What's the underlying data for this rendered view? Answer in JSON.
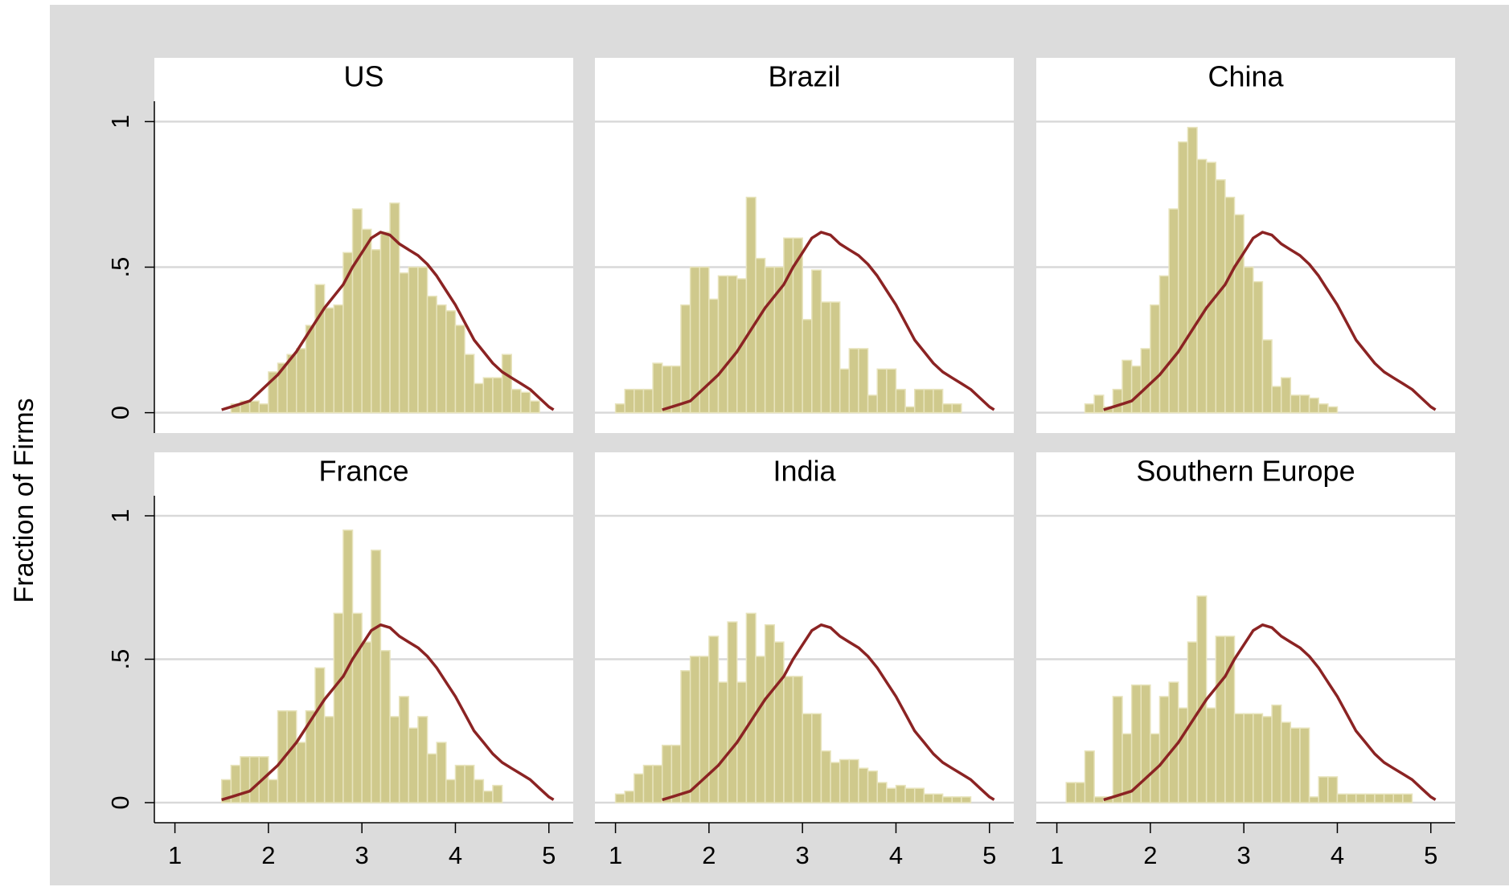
{
  "ylabel": "Fraction of Firms",
  "chart_data": [
    {
      "type": "histogram",
      "title": "US",
      "yaxis": true,
      "bins": [
        1,
        1.1,
        1.2,
        1.3,
        1.4,
        1.5,
        1.6,
        1.7,
        1.8,
        1.9,
        2,
        2.1,
        2.2,
        2.3,
        2.4,
        2.5,
        2.6,
        2.7,
        2.8,
        2.9,
        3,
        3.1,
        3.2,
        3.3,
        3.4,
        3.5,
        3.6,
        3.7,
        3.8,
        3.9,
        4,
        4.1,
        4.2,
        4.3,
        4.4,
        4.5,
        4.6,
        4.7,
        4.8,
        4.9,
        5
      ],
      "values": [
        0,
        0,
        0,
        0,
        0,
        0,
        0.03,
        0.04,
        0.04,
        0.03,
        0.14,
        0.17,
        0.2,
        0.22,
        0.3,
        0.44,
        0.36,
        0.37,
        0.55,
        0.7,
        0.63,
        0.56,
        0.62,
        0.72,
        0.48,
        0.5,
        0.5,
        0.4,
        0.37,
        0.35,
        0.3,
        0.2,
        0.1,
        0.12,
        0.12,
        0.2,
        0.08,
        0.07,
        0.04,
        0
      ],
      "color": "#cfc98c",
      "line": {
        "x": [
          1.5,
          1.6,
          1.7,
          1.8,
          1.9,
          2,
          2.1,
          2.2,
          2.3,
          2.4,
          2.5,
          2.6,
          2.7,
          2.8,
          2.9,
          3,
          3.1,
          3.2,
          3.3,
          3.4,
          3.5,
          3.6,
          3.7,
          3.8,
          3.9,
          4,
          4.1,
          4.2,
          4.3,
          4.4,
          4.5,
          4.6,
          4.7,
          4.8,
          4.9,
          5,
          5.05
        ],
        "values": [
          0.01,
          0.02,
          0.03,
          0.04,
          0.07,
          0.1,
          0.13,
          0.17,
          0.21,
          0.26,
          0.31,
          0.36,
          0.4,
          0.44,
          0.5,
          0.55,
          0.6,
          0.62,
          0.61,
          0.58,
          0.56,
          0.54,
          0.51,
          0.47,
          0.42,
          0.37,
          0.31,
          0.25,
          0.21,
          0.17,
          0.14,
          0.12,
          0.1,
          0.08,
          0.05,
          0.02,
          0.01
        ],
        "color": "#8b2323"
      },
      "xlim": [
        0.78,
        5.26
      ],
      "ylim": [
        -0.07,
        1.07
      ],
      "yticks": [
        0,
        {
          "value": 0.5,
          "label": ".5"
        },
        1
      ],
      "grid": true
    },
    {
      "type": "histogram",
      "title": "Brazil",
      "bins": [
        1,
        1.1,
        1.2,
        1.3,
        1.4,
        1.5,
        1.6,
        1.7,
        1.8,
        1.9,
        2,
        2.1,
        2.2,
        2.3,
        2.4,
        2.5,
        2.6,
        2.7,
        2.8,
        2.9,
        3,
        3.1,
        3.2,
        3.3,
        3.4,
        3.5,
        3.6,
        3.7,
        3.8,
        3.9,
        4,
        4.1,
        4.2,
        4.3,
        4.4,
        4.5,
        4.6,
        4.7,
        4.8,
        4.9,
        5
      ],
      "values": [
        0.03,
        0.08,
        0.08,
        0.08,
        0.17,
        0.16,
        0.16,
        0.37,
        0.5,
        0.5,
        0.39,
        0.47,
        0.47,
        0.46,
        0.74,
        0.53,
        0.5,
        0.5,
        0.6,
        0.6,
        0.32,
        0.49,
        0.38,
        0.38,
        0.15,
        0.22,
        0.22,
        0.06,
        0.15,
        0.15,
        0.08,
        0.02,
        0.08,
        0.08,
        0.08,
        0.03,
        0.03,
        0,
        0,
        0
      ],
      "color": "#cfc98c",
      "line": {
        "x": [
          1.5,
          1.6,
          1.7,
          1.8,
          1.9,
          2,
          2.1,
          2.2,
          2.3,
          2.4,
          2.5,
          2.6,
          2.7,
          2.8,
          2.9,
          3,
          3.1,
          3.2,
          3.3,
          3.4,
          3.5,
          3.6,
          3.7,
          3.8,
          3.9,
          4,
          4.1,
          4.2,
          4.3,
          4.4,
          4.5,
          4.6,
          4.7,
          4.8,
          4.9,
          5,
          5.05
        ],
        "values": [
          0.01,
          0.02,
          0.03,
          0.04,
          0.07,
          0.1,
          0.13,
          0.17,
          0.21,
          0.26,
          0.31,
          0.36,
          0.4,
          0.44,
          0.5,
          0.55,
          0.6,
          0.62,
          0.61,
          0.58,
          0.56,
          0.54,
          0.51,
          0.47,
          0.42,
          0.37,
          0.31,
          0.25,
          0.21,
          0.17,
          0.14,
          0.12,
          0.1,
          0.08,
          0.05,
          0.02,
          0.01
        ],
        "color": "#8b2323"
      },
      "xlim": [
        0.78,
        5.26
      ],
      "ylim": [
        -0.07,
        1.07
      ],
      "yticks": [
        0,
        0.5,
        1
      ],
      "grid": true
    },
    {
      "type": "histogram",
      "title": "China",
      "bins": [
        1,
        1.1,
        1.2,
        1.3,
        1.4,
        1.5,
        1.6,
        1.7,
        1.8,
        1.9,
        2,
        2.1,
        2.2,
        2.3,
        2.4,
        2.5,
        2.6,
        2.7,
        2.8,
        2.9,
        3,
        3.1,
        3.2,
        3.3,
        3.4,
        3.5,
        3.6,
        3.7,
        3.8,
        3.9,
        4,
        4.1,
        4.2,
        4.3,
        4.4,
        4.5,
        4.6,
        4.7,
        4.8,
        4.9,
        5
      ],
      "values": [
        0,
        0,
        0,
        0.03,
        0.06,
        0.02,
        0.08,
        0.18,
        0.16,
        0.22,
        0.37,
        0.47,
        0.7,
        0.93,
        0.98,
        0.87,
        0.86,
        0.8,
        0.74,
        0.68,
        0.5,
        0.45,
        0.25,
        0.09,
        0.12,
        0.06,
        0.06,
        0.05,
        0.03,
        0.02,
        0,
        0,
        0,
        0,
        0,
        0,
        0,
        0,
        0,
        0
      ],
      "color": "#cfc98c",
      "line": {
        "x": [
          1.5,
          1.6,
          1.7,
          1.8,
          1.9,
          2,
          2.1,
          2.2,
          2.3,
          2.4,
          2.5,
          2.6,
          2.7,
          2.8,
          2.9,
          3,
          3.1,
          3.2,
          3.3,
          3.4,
          3.5,
          3.6,
          3.7,
          3.8,
          3.9,
          4,
          4.1,
          4.2,
          4.3,
          4.4,
          4.5,
          4.6,
          4.7,
          4.8,
          4.9,
          5,
          5.05
        ],
        "values": [
          0.01,
          0.02,
          0.03,
          0.04,
          0.07,
          0.1,
          0.13,
          0.17,
          0.21,
          0.26,
          0.31,
          0.36,
          0.4,
          0.44,
          0.5,
          0.55,
          0.6,
          0.62,
          0.61,
          0.58,
          0.56,
          0.54,
          0.51,
          0.47,
          0.42,
          0.37,
          0.31,
          0.25,
          0.21,
          0.17,
          0.14,
          0.12,
          0.1,
          0.08,
          0.05,
          0.02,
          0.01
        ],
        "color": "#8b2323"
      },
      "xlim": [
        0.78,
        5.26
      ],
      "ylim": [
        -0.07,
        1.07
      ],
      "yticks": [
        0,
        0.5,
        1
      ],
      "grid": true
    },
    {
      "type": "histogram",
      "title": "France",
      "yaxis": true,
      "bins": [
        1,
        1.1,
        1.2,
        1.3,
        1.4,
        1.5,
        1.6,
        1.7,
        1.8,
        1.9,
        2,
        2.1,
        2.2,
        2.3,
        2.4,
        2.5,
        2.6,
        2.7,
        2.8,
        2.9,
        3,
        3.1,
        3.2,
        3.3,
        3.4,
        3.5,
        3.6,
        3.7,
        3.8,
        3.9,
        4,
        4.1,
        4.2,
        4.3,
        4.4,
        4.5,
        4.6,
        4.7,
        4.8,
        4.9,
        5
      ],
      "values": [
        0,
        0,
        0,
        0,
        0,
        0.08,
        0.13,
        0.16,
        0.16,
        0.16,
        0.08,
        0.32,
        0.32,
        0.21,
        0.32,
        0.47,
        0.3,
        0.66,
        0.95,
        0.66,
        0.56,
        0.88,
        0.53,
        0.3,
        0.37,
        0.26,
        0.3,
        0.17,
        0.21,
        0.08,
        0.13,
        0.13,
        0.08,
        0.04,
        0.06,
        0,
        0,
        0,
        0,
        0
      ],
      "color": "#cfc98c",
      "line": {
        "x": [
          1.5,
          1.6,
          1.7,
          1.8,
          1.9,
          2,
          2.1,
          2.2,
          2.3,
          2.4,
          2.5,
          2.6,
          2.7,
          2.8,
          2.9,
          3,
          3.1,
          3.2,
          3.3,
          3.4,
          3.5,
          3.6,
          3.7,
          3.8,
          3.9,
          4,
          4.1,
          4.2,
          4.3,
          4.4,
          4.5,
          4.6,
          4.7,
          4.8,
          4.9,
          5,
          5.05
        ],
        "values": [
          0.01,
          0.02,
          0.03,
          0.04,
          0.07,
          0.1,
          0.13,
          0.17,
          0.21,
          0.26,
          0.31,
          0.36,
          0.4,
          0.44,
          0.5,
          0.55,
          0.6,
          0.62,
          0.61,
          0.58,
          0.56,
          0.54,
          0.51,
          0.47,
          0.42,
          0.37,
          0.31,
          0.25,
          0.21,
          0.17,
          0.14,
          0.12,
          0.1,
          0.08,
          0.05,
          0.02,
          0.01
        ],
        "color": "#8b2323"
      },
      "xlim": [
        0.78,
        5.26
      ],
      "ylim": [
        -0.07,
        1.07
      ],
      "xticks": [
        1,
        2,
        3,
        4,
        5
      ],
      "yticks": [
        0,
        {
          "value": 0.5,
          "label": ".5"
        },
        1
      ],
      "grid": true
    },
    {
      "type": "histogram",
      "title": "India",
      "bins": [
        1,
        1.1,
        1.2,
        1.3,
        1.4,
        1.5,
        1.6,
        1.7,
        1.8,
        1.9,
        2,
        2.1,
        2.2,
        2.3,
        2.4,
        2.5,
        2.6,
        2.7,
        2.8,
        2.9,
        3,
        3.1,
        3.2,
        3.3,
        3.4,
        3.5,
        3.6,
        3.7,
        3.8,
        3.9,
        4,
        4.1,
        4.2,
        4.3,
        4.4,
        4.5,
        4.6,
        4.7,
        4.8,
        4.9,
        5
      ],
      "values": [
        0.03,
        0.04,
        0.1,
        0.13,
        0.13,
        0.2,
        0.2,
        0.46,
        0.51,
        0.51,
        0.58,
        0.42,
        0.63,
        0.42,
        0.66,
        0.51,
        0.62,
        0.56,
        0.44,
        0.44,
        0.31,
        0.31,
        0.18,
        0.14,
        0.15,
        0.15,
        0.12,
        0.11,
        0.07,
        0.05,
        0.06,
        0.05,
        0.05,
        0.03,
        0.03,
        0.02,
        0.02,
        0.02,
        0,
        0
      ],
      "color": "#cfc98c",
      "line": {
        "x": [
          1.5,
          1.6,
          1.7,
          1.8,
          1.9,
          2,
          2.1,
          2.2,
          2.3,
          2.4,
          2.5,
          2.6,
          2.7,
          2.8,
          2.9,
          3,
          3.1,
          3.2,
          3.3,
          3.4,
          3.5,
          3.6,
          3.7,
          3.8,
          3.9,
          4,
          4.1,
          4.2,
          4.3,
          4.4,
          4.5,
          4.6,
          4.7,
          4.8,
          4.9,
          5,
          5.05
        ],
        "values": [
          0.01,
          0.02,
          0.03,
          0.04,
          0.07,
          0.1,
          0.13,
          0.17,
          0.21,
          0.26,
          0.31,
          0.36,
          0.4,
          0.44,
          0.5,
          0.55,
          0.6,
          0.62,
          0.61,
          0.58,
          0.56,
          0.54,
          0.51,
          0.47,
          0.42,
          0.37,
          0.31,
          0.25,
          0.21,
          0.17,
          0.14,
          0.12,
          0.1,
          0.08,
          0.05,
          0.02,
          0.01
        ],
        "color": "#8b2323"
      },
      "xlim": [
        0.78,
        5.26
      ],
      "ylim": [
        -0.07,
        1.07
      ],
      "xticks": [
        1,
        2,
        3,
        4,
        5
      ],
      "yticks": [
        0,
        0.5,
        1
      ],
      "grid": true
    },
    {
      "type": "histogram",
      "title": "Southern Europe",
      "bins": [
        1,
        1.1,
        1.2,
        1.3,
        1.4,
        1.5,
        1.6,
        1.7,
        1.8,
        1.9,
        2,
        2.1,
        2.2,
        2.3,
        2.4,
        2.5,
        2.6,
        2.7,
        2.8,
        2.9,
        3,
        3.1,
        3.2,
        3.3,
        3.4,
        3.5,
        3.6,
        3.7,
        3.8,
        3.9,
        4,
        4.1,
        4.2,
        4.3,
        4.4,
        4.5,
        4.6,
        4.7,
        4.8,
        4.9,
        5
      ],
      "values": [
        0,
        0.07,
        0.07,
        0.18,
        0.02,
        0.02,
        0.37,
        0.24,
        0.41,
        0.41,
        0.24,
        0.37,
        0.42,
        0.33,
        0.56,
        0.72,
        0.33,
        0.58,
        0.58,
        0.31,
        0.31,
        0.31,
        0.3,
        0.34,
        0.28,
        0.26,
        0.26,
        0.02,
        0.09,
        0.09,
        0.03,
        0.03,
        0.03,
        0.03,
        0.03,
        0.03,
        0.03,
        0.03,
        0,
        0
      ],
      "color": "#cfc98c",
      "line": {
        "x": [
          1.5,
          1.6,
          1.7,
          1.8,
          1.9,
          2,
          2.1,
          2.2,
          2.3,
          2.4,
          2.5,
          2.6,
          2.7,
          2.8,
          2.9,
          3,
          3.1,
          3.2,
          3.3,
          3.4,
          3.5,
          3.6,
          3.7,
          3.8,
          3.9,
          4,
          4.1,
          4.2,
          4.3,
          4.4,
          4.5,
          4.6,
          4.7,
          4.8,
          4.9,
          5,
          5.05
        ],
        "values": [
          0.01,
          0.02,
          0.03,
          0.04,
          0.07,
          0.1,
          0.13,
          0.17,
          0.21,
          0.26,
          0.31,
          0.36,
          0.4,
          0.44,
          0.5,
          0.55,
          0.6,
          0.62,
          0.61,
          0.58,
          0.56,
          0.54,
          0.51,
          0.47,
          0.42,
          0.37,
          0.31,
          0.25,
          0.21,
          0.17,
          0.14,
          0.12,
          0.1,
          0.08,
          0.05,
          0.02,
          0.01
        ],
        "color": "#8b2323"
      },
      "xlim": [
        0.78,
        5.26
      ],
      "ylim": [
        -0.07,
        1.07
      ],
      "xticks": [
        1,
        2,
        3,
        4,
        5
      ],
      "yticks": [
        0,
        0.5,
        1
      ],
      "grid": true
    }
  ]
}
